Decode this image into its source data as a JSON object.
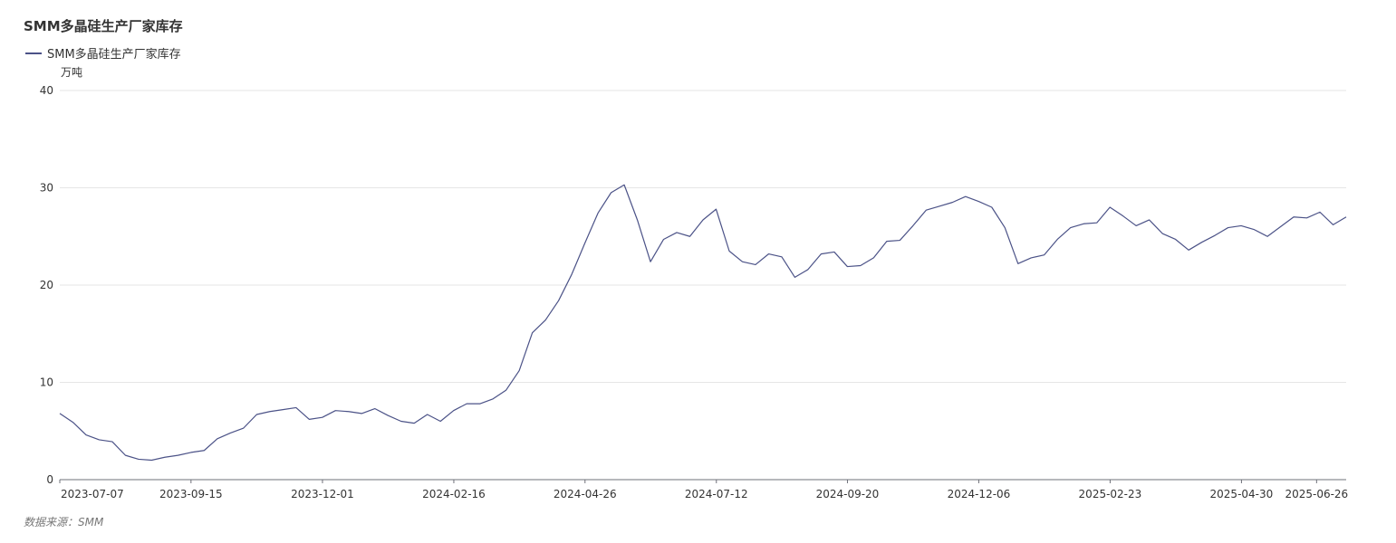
{
  "chart_data": {
    "type": "line",
    "title": "SMM多晶硅生产厂家库存",
    "ylabel": "万吨",
    "source": "数据来源：SMM",
    "ylim": [
      0,
      40
    ],
    "yticks": [
      0,
      10,
      20,
      30,
      40
    ],
    "xticks": [
      "2023-07-07",
      "2023-09-15",
      "2023-12-01",
      "2024-02-16",
      "2024-04-26",
      "2024-07-12",
      "2024-09-20",
      "2024-12-06",
      "2025-02-23",
      "2025-04-30",
      "2025-06-26"
    ],
    "legend_position": "top-left",
    "grid": true,
    "series": [
      {
        "name": "SMM多晶硅生产厂家库存",
        "color": "#4b5287",
        "values": [
          6.8,
          5.9,
          4.6,
          4.1,
          3.9,
          2.5,
          2.1,
          2.0,
          2.3,
          2.5,
          2.8,
          3.0,
          4.2,
          4.8,
          5.3,
          6.7,
          7.0,
          7.2,
          7.4,
          6.2,
          6.4,
          7.1,
          7.0,
          6.8,
          7.3,
          6.6,
          6.0,
          5.8,
          6.7,
          6.0,
          7.1,
          7.8,
          7.8,
          8.3,
          9.2,
          11.2,
          15.1,
          16.4,
          18.4,
          21.1,
          24.3,
          27.4,
          29.5,
          30.3,
          26.7,
          22.4,
          24.7,
          25.4,
          25.0,
          26.7,
          27.8,
          23.5,
          22.4,
          22.1,
          23.2,
          22.9,
          20.8,
          21.6,
          23.2,
          23.4,
          21.9,
          22.0,
          22.8,
          24.5,
          24.6,
          26.1,
          27.7,
          28.1,
          28.5,
          29.1,
          28.6,
          28.0,
          25.9,
          22.2,
          22.8,
          23.1,
          24.7,
          25.9,
          26.3,
          26.4,
          28.0,
          27.1,
          26.1,
          26.7,
          25.3,
          24.7,
          23.6,
          24.4,
          25.1,
          25.9,
          26.1,
          25.7,
          25.0,
          26.0,
          27.0,
          26.9,
          27.5,
          26.2,
          27.0
        ]
      }
    ]
  }
}
